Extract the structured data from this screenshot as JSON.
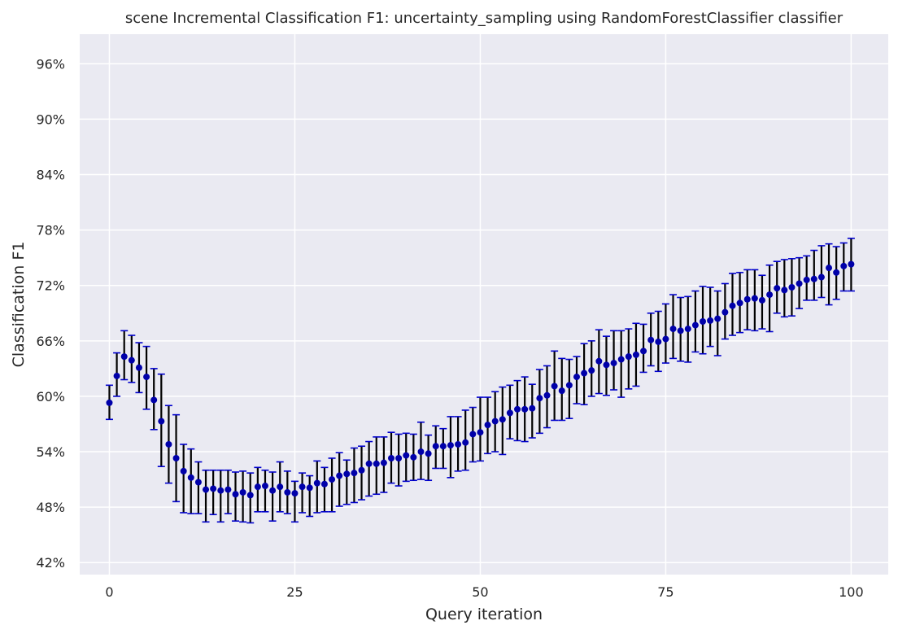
{
  "chart_data": {
    "type": "scatter",
    "title": "scene Incremental Classification F1: uncertainty_sampling using RandomForestClassifier classifier",
    "xlabel": "Query iteration",
    "ylabel": "Classification F1",
    "xlim": [
      -4,
      105
    ],
    "ylim": [
      40.7,
      99.2
    ],
    "x_ticks": [
      0,
      25,
      50,
      75,
      100
    ],
    "x_tick_labels": [
      "0",
      "25",
      "50",
      "75",
      "100"
    ],
    "y_ticks": [
      42,
      48,
      54,
      60,
      66,
      72,
      78,
      84,
      90,
      96
    ],
    "y_tick_labels": [
      "42%",
      "48%",
      "54%",
      "60%",
      "66%",
      "72%",
      "78%",
      "84%",
      "90%",
      "96%"
    ],
    "grid": true,
    "background_color": "#eaeaf2",
    "grid_color": "#ffffff",
    "marker_color": "#0000aa",
    "errorbar_color": "#000000",
    "errorbar_cap_color": "#0000cd",
    "x": [
      0,
      1,
      2,
      3,
      4,
      5,
      6,
      7,
      8,
      9,
      10,
      11,
      12,
      13,
      14,
      15,
      16,
      17,
      18,
      19,
      20,
      21,
      22,
      23,
      24,
      25,
      26,
      27,
      28,
      29,
      30,
      31,
      32,
      33,
      34,
      35,
      36,
      37,
      38,
      39,
      40,
      41,
      42,
      43,
      44,
      45,
      46,
      47,
      48,
      49,
      50,
      51,
      52,
      53,
      54,
      55,
      56,
      57,
      58,
      59,
      60,
      61,
      62,
      63,
      64,
      65,
      66,
      67,
      68,
      69,
      70,
      71,
      72,
      73,
      74,
      75,
      76,
      77,
      78,
      79,
      80,
      81,
      82,
      83,
      84,
      85,
      86,
      87,
      88,
      89,
      90,
      91,
      92,
      93,
      94,
      95,
      96,
      97,
      98,
      99,
      100
    ],
    "y": [
      59.3,
      62.2,
      64.3,
      63.9,
      63.1,
      62.1,
      59.6,
      57.3,
      54.8,
      53.3,
      51.9,
      51.2,
      50.7,
      49.9,
      50.0,
      49.8,
      49.9,
      49.4,
      49.6,
      49.3,
      50.2,
      50.3,
      49.8,
      50.2,
      49.6,
      49.5,
      50.2,
      50.1,
      50.6,
      50.5,
      51.0,
      51.4,
      51.6,
      51.7,
      52.0,
      52.7,
      52.7,
      52.8,
      53.3,
      53.3,
      53.6,
      53.4,
      54.0,
      53.8,
      54.6,
      54.6,
      54.7,
      54.8,
      55.0,
      55.9,
      56.1,
      56.9,
      57.3,
      57.5,
      58.2,
      58.6,
      58.6,
      58.7,
      59.8,
      60.1,
      61.1,
      60.6,
      61.2,
      62.1,
      62.5,
      62.8,
      63.8,
      63.4,
      63.6,
      64.0,
      64.3,
      64.5,
      64.9,
      66.1,
      65.9,
      66.2,
      67.3,
      67.1,
      67.3,
      67.7,
      68.1,
      68.2,
      68.4,
      69.1,
      69.8,
      70.1,
      70.5,
      70.6,
      70.4,
      71.0,
      71.7,
      71.5,
      71.8,
      72.2,
      72.6,
      72.7,
      72.9,
      73.9,
      73.4,
      74.1,
      74.3
    ],
    "err_low": [
      57.5,
      60.0,
      61.8,
      61.5,
      60.4,
      58.6,
      56.4,
      52.4,
      50.6,
      48.6,
      47.4,
      47.3,
      47.3,
      46.4,
      47.2,
      46.4,
      47.3,
      46.5,
      46.4,
      46.3,
      47.5,
      47.5,
      46.5,
      47.5,
      47.3,
      46.4,
      47.4,
      47.0,
      47.4,
      47.5,
      47.5,
      48.1,
      48.3,
      48.5,
      48.8,
      49.2,
      49.4,
      49.6,
      50.6,
      50.3,
      50.8,
      50.9,
      51.0,
      50.9,
      52.2,
      52.2,
      51.2,
      51.9,
      52.0,
      52.9,
      53.0,
      53.8,
      54.0,
      53.7,
      55.4,
      55.2,
      55.1,
      55.5,
      56.0,
      56.6,
      57.4,
      57.4,
      57.6,
      59.2,
      59.1,
      60.0,
      60.3,
      60.1,
      60.7,
      59.9,
      60.8,
      61.1,
      62.6,
      63.3,
      62.7,
      63.6,
      64.1,
      63.8,
      63.7,
      64.8,
      64.6,
      65.4,
      64.4,
      66.2,
      66.6,
      66.9,
      67.2,
      67.1,
      67.3,
      67.0,
      69.0,
      68.6,
      68.7,
      69.5,
      70.4,
      70.4,
      70.7,
      69.9,
      70.5,
      71.4,
      71.4
    ],
    "err_high": [
      61.2,
      64.7,
      67.1,
      66.6,
      65.8,
      65.4,
      63.0,
      62.4,
      59.0,
      58.0,
      54.8,
      54.3,
      52.9,
      52.0,
      52.0,
      52.0,
      52.0,
      51.8,
      51.9,
      51.7,
      52.3,
      52.0,
      51.8,
      52.9,
      51.9,
      50.8,
      51.7,
      51.4,
      53.0,
      52.3,
      53.3,
      53.9,
      53.1,
      54.4,
      54.6,
      55.1,
      55.6,
      55.6,
      56.1,
      55.9,
      56.0,
      55.9,
      57.2,
      55.8,
      56.8,
      56.5,
      57.8,
      57.8,
      58.5,
      58.8,
      59.9,
      59.9,
      60.5,
      61.0,
      61.2,
      61.7,
      62.1,
      61.3,
      62.9,
      63.3,
      64.9,
      64.1,
      64.0,
      64.3,
      65.7,
      66.0,
      67.2,
      66.5,
      67.1,
      67.1,
      67.3,
      67.9,
      67.8,
      69.0,
      69.2,
      70.0,
      71.0,
      70.7,
      70.8,
      71.4,
      71.9,
      71.8,
      71.4,
      72.2,
      73.3,
      73.4,
      73.7,
      73.7,
      73.1,
      74.2,
      74.6,
      74.8,
      74.9,
      75.0,
      75.2,
      75.8,
      76.3,
      76.5,
      76.2,
      76.6,
      77.1
    ]
  }
}
